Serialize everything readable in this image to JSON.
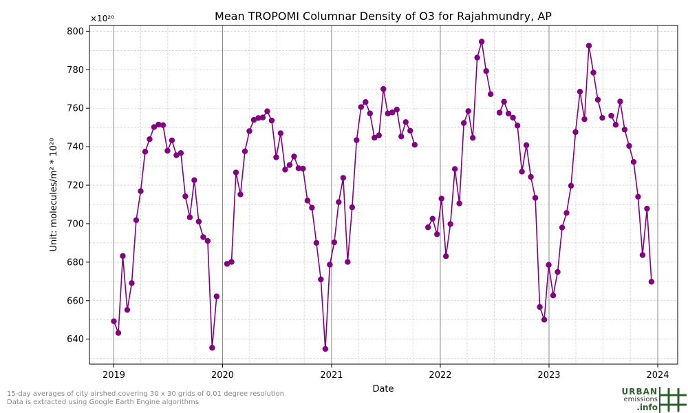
{
  "chart_data": {
    "type": "line",
    "title": "Mean TROPOMI Columnar Density of O3 for Rajahmundry, AP",
    "xlabel": "Date",
    "ylabel": "Unit: molecules/m² * 10²⁰",
    "y_multiplier_label": "×10²⁰",
    "ylim": [
      627,
      803
    ],
    "yticks": [
      640,
      660,
      680,
      700,
      720,
      740,
      760,
      780,
      800
    ],
    "xlim": [
      "2018-10-11",
      "2024-03-08"
    ],
    "xticks": [
      {
        "date": "2019-01-01",
        "label": "2019"
      },
      {
        "date": "2020-01-01",
        "label": "2020"
      },
      {
        "date": "2021-01-01",
        "label": "2021"
      },
      {
        "date": "2022-01-01",
        "label": "2022"
      },
      {
        "date": "2023-01-01",
        "label": "2023"
      },
      {
        "date": "2024-01-01",
        "label": "2024"
      }
    ],
    "grid": true,
    "marker": "circle",
    "series": [
      {
        "color": "#800080",
        "segments": [
          [
            {
              "x": "2019-01-01",
              "y": 649.3
            },
            {
              "x": "2019-01-16",
              "y": 643.2
            },
            {
              "x": "2019-01-31",
              "y": 683.2
            },
            {
              "x": "2019-02-15",
              "y": 655.2
            },
            {
              "x": "2019-03-02",
              "y": 669.1
            },
            {
              "x": "2019-03-17",
              "y": 701.8
            },
            {
              "x": "2019-04-01",
              "y": 716.9
            },
            {
              "x": "2019-04-16",
              "y": 737.4
            },
            {
              "x": "2019-05-01",
              "y": 743.9
            },
            {
              "x": "2019-05-16",
              "y": 750.2
            },
            {
              "x": "2019-05-31",
              "y": 751.5
            },
            {
              "x": "2019-06-15",
              "y": 751.2
            },
            {
              "x": "2019-06-30",
              "y": 737.9
            },
            {
              "x": "2019-07-15",
              "y": 743.3
            },
            {
              "x": "2019-07-30",
              "y": 735.6
            },
            {
              "x": "2019-08-14",
              "y": 736.7
            },
            {
              "x": "2019-08-29",
              "y": 714.2
            },
            {
              "x": "2019-09-13",
              "y": 703.3
            },
            {
              "x": "2019-09-28",
              "y": 722.6
            },
            {
              "x": "2019-10-13",
              "y": 701.1
            },
            {
              "x": "2019-10-28",
              "y": 693.0
            },
            {
              "x": "2019-11-12",
              "y": 691.0
            },
            {
              "x": "2019-11-27",
              "y": 635.5
            },
            {
              "x": "2019-12-12",
              "y": 662.2
            }
          ],
          [
            {
              "x": "2020-01-16",
              "y": 679.1
            },
            {
              "x": "2020-01-31",
              "y": 680.1
            },
            {
              "x": "2020-02-15",
              "y": 726.6
            },
            {
              "x": "2020-03-01",
              "y": 715.2
            },
            {
              "x": "2020-03-16",
              "y": 737.6
            },
            {
              "x": "2020-03-31",
              "y": 748.1
            },
            {
              "x": "2020-04-15",
              "y": 753.9
            },
            {
              "x": "2020-04-30",
              "y": 754.9
            },
            {
              "x": "2020-05-15",
              "y": 755.2
            },
            {
              "x": "2020-05-30",
              "y": 758.4
            },
            {
              "x": "2020-06-14",
              "y": 753.6
            },
            {
              "x": "2020-06-29",
              "y": 734.5
            },
            {
              "x": "2020-07-14",
              "y": 747.0
            },
            {
              "x": "2020-07-29",
              "y": 728.1
            },
            {
              "x": "2020-08-13",
              "y": 730.5
            },
            {
              "x": "2020-08-28",
              "y": 734.9
            },
            {
              "x": "2020-09-12",
              "y": 728.8
            },
            {
              "x": "2020-09-27",
              "y": 728.6
            },
            {
              "x": "2020-10-12",
              "y": 712.0
            },
            {
              "x": "2020-10-27",
              "y": 708.3
            },
            {
              "x": "2020-11-11",
              "y": 690.0
            },
            {
              "x": "2020-11-26",
              "y": 671.0
            },
            {
              "x": "2020-12-11",
              "y": 634.9
            },
            {
              "x": "2020-12-26",
              "y": 678.7
            },
            {
              "x": "2021-01-10",
              "y": 690.3
            },
            {
              "x": "2021-01-25",
              "y": 711.2
            },
            {
              "x": "2021-02-09",
              "y": 723.8
            },
            {
              "x": "2021-02-24",
              "y": 680.1
            },
            {
              "x": "2021-03-11",
              "y": 708.5
            },
            {
              "x": "2021-03-26",
              "y": 743.4
            },
            {
              "x": "2021-04-10",
              "y": 760.6
            },
            {
              "x": "2021-04-25",
              "y": 763.2
            },
            {
              "x": "2021-05-10",
              "y": 757.3
            },
            {
              "x": "2021-05-25",
              "y": 744.7
            },
            {
              "x": "2021-06-09",
              "y": 745.9
            },
            {
              "x": "2021-06-24",
              "y": 770.0
            },
            {
              "x": "2021-07-09",
              "y": 757.3
            },
            {
              "x": "2021-07-24",
              "y": 757.8
            },
            {
              "x": "2021-08-08",
              "y": 759.3
            },
            {
              "x": "2021-08-23",
              "y": 745.3
            },
            {
              "x": "2021-09-07",
              "y": 752.8
            },
            {
              "x": "2021-09-22",
              "y": 748.3
            },
            {
              "x": "2021-10-07",
              "y": 741.0
            }
          ],
          [
            {
              "x": "2021-11-21",
              "y": 698.1
            },
            {
              "x": "2021-12-06",
              "y": 702.6
            },
            {
              "x": "2021-12-21",
              "y": 694.5
            },
            {
              "x": "2022-01-05",
              "y": 713.0
            },
            {
              "x": "2022-01-20",
              "y": 683.1
            },
            {
              "x": "2022-02-04",
              "y": 699.8
            },
            {
              "x": "2022-02-19",
              "y": 728.4
            },
            {
              "x": "2022-03-06",
              "y": 710.5
            },
            {
              "x": "2022-03-21",
              "y": 752.3
            },
            {
              "x": "2022-04-05",
              "y": 758.5
            },
            {
              "x": "2022-04-20",
              "y": 744.6
            },
            {
              "x": "2022-05-05",
              "y": 786.3
            },
            {
              "x": "2022-05-20",
              "y": 794.6
            },
            {
              "x": "2022-06-04",
              "y": 779.3
            },
            {
              "x": "2022-06-19",
              "y": 767.3
            }
          ],
          [
            {
              "x": "2022-07-19",
              "y": 757.7
            },
            {
              "x": "2022-08-03",
              "y": 763.4
            },
            {
              "x": "2022-08-18",
              "y": 757.2
            },
            {
              "x": "2022-09-02",
              "y": 755.1
            },
            {
              "x": "2022-09-17",
              "y": 751.0
            },
            {
              "x": "2022-10-02",
              "y": 727.0
            },
            {
              "x": "2022-10-17",
              "y": 740.8
            },
            {
              "x": "2022-11-01",
              "y": 724.3
            },
            {
              "x": "2022-11-16",
              "y": 713.4
            },
            {
              "x": "2022-12-01",
              "y": 656.7
            },
            {
              "x": "2022-12-16",
              "y": 650.1
            },
            {
              "x": "2022-12-31",
              "y": 678.6
            },
            {
              "x": "2023-01-15",
              "y": 662.7
            },
            {
              "x": "2023-01-30",
              "y": 674.9
            },
            {
              "x": "2023-02-14",
              "y": 698.0
            },
            {
              "x": "2023-03-01",
              "y": 705.6
            },
            {
              "x": "2023-03-16",
              "y": 719.7
            },
            {
              "x": "2023-03-31",
              "y": 747.6
            },
            {
              "x": "2023-04-15",
              "y": 768.6
            },
            {
              "x": "2023-04-30",
              "y": 754.3
            },
            {
              "x": "2023-05-15",
              "y": 792.5
            },
            {
              "x": "2023-05-30",
              "y": 778.5
            },
            {
              "x": "2023-06-14",
              "y": 764.4
            },
            {
              "x": "2023-06-29",
              "y": 755.0
            }
          ],
          [
            {
              "x": "2023-07-29",
              "y": 756.1
            },
            {
              "x": "2023-08-13",
              "y": 751.4
            },
            {
              "x": "2023-08-28",
              "y": 763.5
            },
            {
              "x": "2023-09-12",
              "y": 748.9
            },
            {
              "x": "2023-09-27",
              "y": 740.4
            },
            {
              "x": "2023-10-12",
              "y": 732.1
            },
            {
              "x": "2023-10-27",
              "y": 714.0
            },
            {
              "x": "2023-11-11",
              "y": 683.7
            },
            {
              "x": "2023-11-26",
              "y": 707.8
            },
            {
              "x": "2023-12-11",
              "y": 669.8
            }
          ]
        ]
      }
    ]
  },
  "footnote": {
    "line1": "15-day averages of city airshed covering 30 x 30 grids of 0.01 degree resolution",
    "line2": "Data is extracted using Google Earth Engine algorithms"
  },
  "logo": {
    "line1": "URBAN",
    "line2": "emissions",
    "line3": ".info",
    "color": "#2e5e2e"
  }
}
